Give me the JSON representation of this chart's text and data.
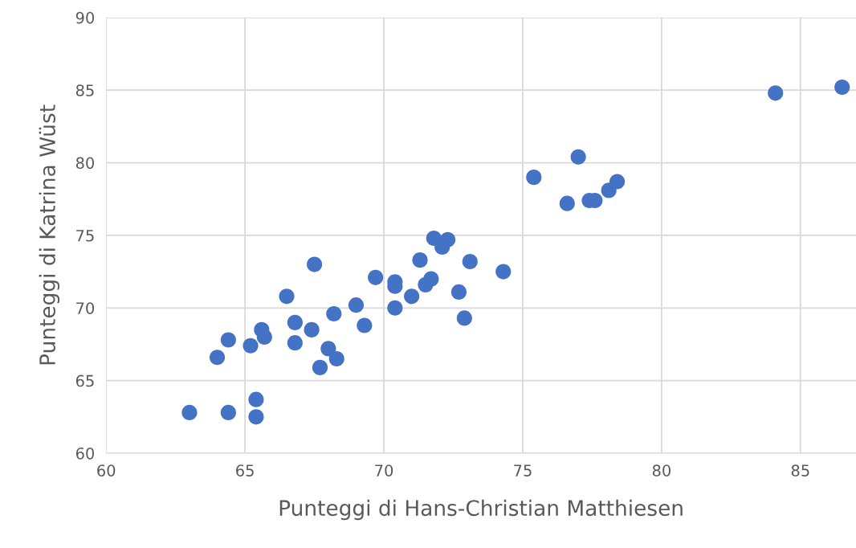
{
  "chart_data": {
    "type": "scatter",
    "xlabel": "Punteggi di Hans-Christian Matthiesen",
    "ylabel": "Punteggi di Katrina Wüst",
    "x": [
      63.0,
      64.4,
      65.4,
      65.4,
      64.0,
      64.4,
      65.2,
      65.6,
      65.7,
      66.5,
      66.8,
      66.8,
      67.4,
      67.5,
      67.7,
      68.0,
      68.2,
      68.3,
      69.0,
      69.3,
      69.7,
      70.4,
      70.4,
      70.4,
      71.0,
      71.3,
      71.5,
      71.7,
      71.8,
      72.1,
      72.3,
      72.7,
      72.9,
      73.1,
      74.3,
      75.4,
      76.6,
      77.0,
      77.4,
      77.6,
      78.1,
      78.4,
      84.1,
      86.5
    ],
    "series": [
      {
        "color": "#4472c4",
        "values": [
          62.8,
          62.8,
          63.7,
          62.5,
          66.6,
          67.8,
          67.4,
          68.5,
          68.0,
          70.8,
          69.0,
          67.6,
          68.5,
          73.0,
          65.9,
          67.2,
          69.6,
          66.5,
          70.2,
          68.8,
          72.1,
          71.8,
          71.5,
          70.0,
          70.8,
          73.3,
          71.6,
          72.0,
          74.8,
          74.2,
          74.7,
          71.1,
          69.3,
          73.2,
          72.5,
          79.0,
          77.2,
          80.4,
          77.4,
          77.4,
          78.1,
          78.7,
          84.8,
          85.2
        ]
      }
    ],
    "xlim": [
      60,
      87
    ],
    "ylim": [
      60,
      90
    ],
    "xticks": [
      60,
      65,
      70,
      75,
      80,
      85
    ],
    "yticks": [
      60,
      65,
      70,
      75,
      80,
      85,
      90
    ],
    "grid": true,
    "marker": "circle",
    "legend": false
  }
}
